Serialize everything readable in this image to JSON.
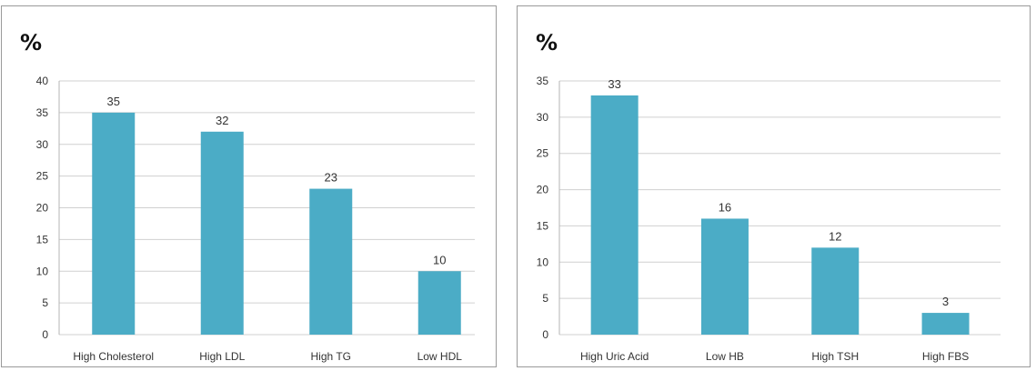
{
  "chart_data": [
    {
      "type": "bar",
      "ylabel": "%",
      "categories": [
        "High Cholesterol",
        "High LDL",
        "High TG",
        "Low HDL"
      ],
      "values": [
        35,
        32,
        23,
        10
      ],
      "ylim": [
        0,
        40
      ],
      "yticks": [
        0,
        5,
        10,
        15,
        20,
        25,
        30,
        35,
        40
      ],
      "grid": true,
      "bar_color": "#4bacc6"
    },
    {
      "type": "bar",
      "ylabel": "%",
      "categories": [
        "High Uric Acid",
        "Low HB",
        "High TSH",
        "High FBS"
      ],
      "values": [
        33,
        16,
        12,
        3
      ],
      "ylim": [
        0,
        35
      ],
      "yticks": [
        0,
        5,
        10,
        15,
        20,
        25,
        30,
        35
      ],
      "grid": true,
      "bar_color": "#4bacc6"
    }
  ]
}
